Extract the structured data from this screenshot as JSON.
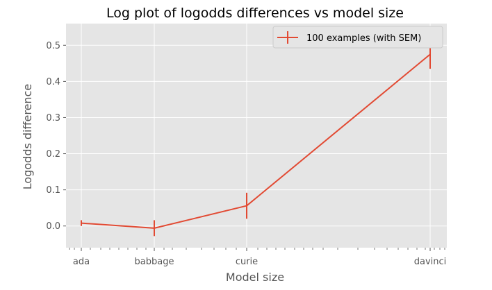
{
  "chart_data": {
    "type": "line",
    "title": "Log plot of logodds differences vs model size",
    "xlabel": "Model size",
    "ylabel": "Logodds difference",
    "xscale": "log",
    "categories": [
      "ada",
      "babbage",
      "curie",
      "davinci"
    ],
    "yticks": [
      "0.0",
      "0.1",
      "0.2",
      "0.3",
      "0.4",
      "0.5"
    ],
    "ylim": [
      -0.06,
      0.56
    ],
    "grid": true,
    "legend_position": "upper right",
    "series": [
      {
        "name": "100 examples (with SEM)",
        "color": "#e24a33",
        "values": [
          0.008,
          -0.006,
          0.056,
          0.475
        ],
        "errors": [
          0.008,
          0.022,
          0.036,
          0.04
        ]
      }
    ]
  }
}
